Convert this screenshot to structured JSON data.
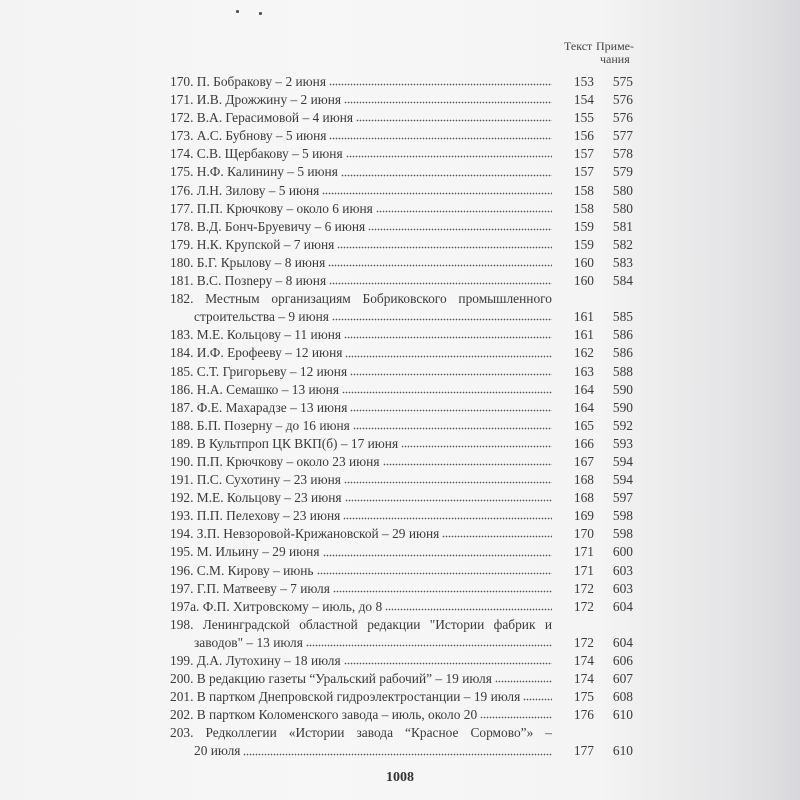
{
  "header": {
    "text_col": "Текст",
    "notes_col_line1": "Приме-",
    "notes_col_line2": "чания"
  },
  "entries": [
    {
      "n": "170.",
      "text": "П. Бобракову – 2 июня",
      "p": "153",
      "note": "575"
    },
    {
      "n": "171.",
      "text": "И.В. Дрожжину – 2 июня",
      "p": "154",
      "note": "576"
    },
    {
      "n": "172.",
      "text": "В.А. Герасимовой – 4 июня",
      "p": "155",
      "note": "576"
    },
    {
      "n": "173.",
      "text": "А.С. Бубнову – 5 июня",
      "p": "156",
      "note": "577"
    },
    {
      "n": "174.",
      "text": "С.В. Щербакову – 5 июня",
      "p": "157",
      "note": "578"
    },
    {
      "n": "175.",
      "text": "Н.Ф. Калинину – 5 июня",
      "p": "157",
      "note": "579"
    },
    {
      "n": "176.",
      "text": "Л.Н. Зилову – 5 июня",
      "p": "158",
      "note": "580"
    },
    {
      "n": "177.",
      "text": "П.П. Крючкову – около 6 июня",
      "p": "158",
      "note": "580"
    },
    {
      "n": "178.",
      "text": "В.Д. Бонч-Бруевичу – 6 июня",
      "p": "159",
      "note": "581"
    },
    {
      "n": "179.",
      "text": "Н.К. Крупской – 7 июня",
      "p": "159",
      "note": "582"
    },
    {
      "n": "180.",
      "text": "Б.Г. Крылову – 8 июня",
      "p": "160",
      "note": "583"
    },
    {
      "n": "181.",
      "text": "В.С. Позneру – 8 июня",
      "p": "160",
      "note": "584"
    },
    {
      "n": "182.",
      "text": "Местным организациям Бобриковского промышленного",
      "text2": "строительства – 9 июня",
      "p": "161",
      "note": "585"
    },
    {
      "n": "183.",
      "text": "М.Е. Кольцову – 11 июня",
      "p": "161",
      "note": "586"
    },
    {
      "n": "184.",
      "text": "И.Ф. Ерофееву – 12 июня",
      "p": "162",
      "note": "586"
    },
    {
      "n": "185.",
      "text": "С.Т. Григорьеву – 12 июня",
      "p": "163",
      "note": "588"
    },
    {
      "n": "186.",
      "text": "Н.А. Семашко – 13 июня",
      "p": "164",
      "note": "590"
    },
    {
      "n": "187.",
      "text": "Ф.Е. Махарадзе – 13 июня",
      "p": "164",
      "note": "590"
    },
    {
      "n": "188.",
      "text": "Б.П. Позерну – до 16 июня",
      "p": "165",
      "note": "592"
    },
    {
      "n": "189.",
      "text": "В Культпроп ЦК ВКП(б) – 17 июня",
      "p": "166",
      "note": "593"
    },
    {
      "n": "190.",
      "text": "П.П. Крючкову – около 23 июня",
      "p": "167",
      "note": "594"
    },
    {
      "n": "191.",
      "text": "П.С. Сухотину – 23 июня",
      "p": "168",
      "note": "594"
    },
    {
      "n": "192.",
      "text": "М.Е. Кольцову – 23 июня",
      "p": "168",
      "note": "597"
    },
    {
      "n": "193.",
      "text": "П.П. Пелехову – 23 июня",
      "p": "169",
      "note": "598"
    },
    {
      "n": "194.",
      "text": "З.П. Невзоровой-Крижановской – 29 июня",
      "p": "170",
      "note": "598"
    },
    {
      "n": "195.",
      "text": "М. Ильину – 29 июня",
      "p": "171",
      "note": "600"
    },
    {
      "n": "196.",
      "text": "С.М. Кирову – июнь",
      "p": "171",
      "note": "603"
    },
    {
      "n": "197.",
      "text": "Г.П. Матвееву – 7 июля",
      "p": "172",
      "note": "603"
    },
    {
      "n": "197а.",
      "text": "Ф.П. Хитровскому – июль, до 8",
      "p": "172",
      "note": "604"
    },
    {
      "n": "198.",
      "text": "Ленинградской областной редакции \"Истории фабрик и",
      "text2": "заводов\" – 13 июля",
      "p": "172",
      "note": "604"
    },
    {
      "n": "199.",
      "text": "Д.А. Лутохину – 18 июля",
      "p": "174",
      "note": "606"
    },
    {
      "n": "200.",
      "text": "В редакцию газеты “Уральский рабочий” – 19 июля",
      "p": "174",
      "note": "607"
    },
    {
      "n": "201.",
      "text": "В партком Днепровской гидроэлектростанции – 19 июля",
      "p": "175",
      "note": "608"
    },
    {
      "n": "202.",
      "text": "В партком Коломенского завода – июль, около 20",
      "p": "176",
      "note": "610"
    },
    {
      "n": "203.",
      "text": "Редколлегии «Истории завода “Красное Сормово”» –",
      "text2": "20 июля",
      "p": "177",
      "note": "610"
    }
  ],
  "page_number": "1008"
}
